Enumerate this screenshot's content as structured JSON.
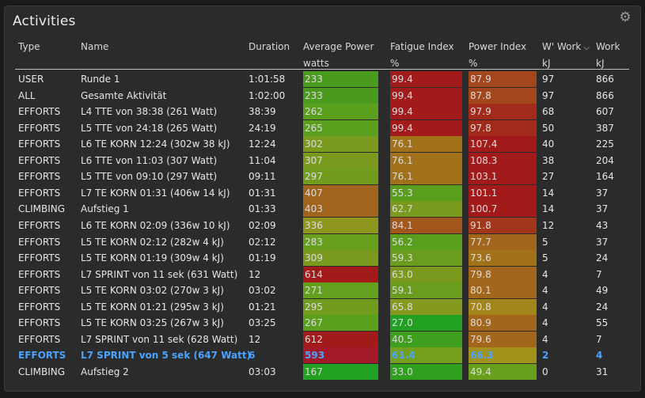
{
  "panel": {
    "title": "Activities",
    "settings_icon": "gear-icon"
  },
  "headers": {
    "type": "Type",
    "name": "Name",
    "duration": "Duration",
    "avg_power": "Average Power",
    "avg_power_unit": "watts",
    "fatigue": "Fatigue Index",
    "fatigue_unit": "%",
    "power_index": "Power Index",
    "power_index_unit": "%",
    "wprime": "W' Work",
    "wprime_unit": "kJ",
    "work": "Work",
    "work_unit": "kJ"
  },
  "rows": [
    {
      "type": "USER",
      "name": "Runde 1",
      "duration": "1:01:58",
      "avg_power": "233",
      "fatigue": "99.4",
      "power_index": "87.9",
      "wprime": "97",
      "work": "866",
      "ap_color": "#4a9a1e",
      "fi_color": "#a21a1a",
      "pi_color": "#a3461c"
    },
    {
      "type": "ALL",
      "name": "Gesamte Aktivität",
      "duration": "1:02:00",
      "avg_power": "233",
      "fatigue": "99.4",
      "power_index": "87.8",
      "wprime": "97",
      "work": "866",
      "ap_color": "#4a9a1e",
      "fi_color": "#a21a1a",
      "pi_color": "#a3461c"
    },
    {
      "type": "EFFORTS",
      "name": "L4 TTE von 38:38  (261 Watt)",
      "duration": "38:39",
      "avg_power": "262",
      "fatigue": "99.4",
      "power_index": "97.9",
      "wprime": "68",
      "work": "607",
      "ap_color": "#5aa01e",
      "fi_color": "#a21a1a",
      "pi_color": "#a22a1a"
    },
    {
      "type": "EFFORTS",
      "name": "L5 TTE von 24:18  (265 Watt)",
      "duration": "24:19",
      "avg_power": "265",
      "fatigue": "99.4",
      "power_index": "97.8",
      "wprime": "50",
      "work": "387",
      "ap_color": "#5aa01e",
      "fi_color": "#a21a1a",
      "pi_color": "#a22a1a"
    },
    {
      "type": "EFFORTS",
      "name": "L6 TE KORN 12:24 (302w 38 kJ)",
      "duration": "12:24",
      "avg_power": "302",
      "fatigue": "76.1",
      "power_index": "107.4",
      "wprime": "40",
      "work": "225",
      "ap_color": "#7a9a1e",
      "fi_color": "#a2721a",
      "pi_color": "#a21a1a"
    },
    {
      "type": "EFFORTS",
      "name": "L6 TTE von 11:03  (307 Watt)",
      "duration": "11:04",
      "avg_power": "307",
      "fatigue": "76.1",
      "power_index": "108.3",
      "wprime": "38",
      "work": "204",
      "ap_color": "#7a9a1e",
      "fi_color": "#a2721a",
      "pi_color": "#a21a1a"
    },
    {
      "type": "EFFORTS",
      "name": "L5 TTE von 09:10  (297 Watt)",
      "duration": "09:11",
      "avg_power": "297",
      "fatigue": "76.1",
      "power_index": "103.1",
      "wprime": "27",
      "work": "164",
      "ap_color": "#729c1e",
      "fi_color": "#a2721a",
      "pi_color": "#a21a1a"
    },
    {
      "type": "EFFORTS",
      "name": "L7 TE KORN 01:31 (406w 14 kJ)",
      "duration": "01:31",
      "avg_power": "407",
      "fatigue": "55.3",
      "power_index": "101.1",
      "wprime": "14",
      "work": "37",
      "ap_color": "#a2641c",
      "fi_color": "#5a9e1e",
      "pi_color": "#a21a1a"
    },
    {
      "type": "CLIMBING",
      "name": "Aufstieg 1",
      "duration": "01:33",
      "avg_power": "403",
      "fatigue": "62.7",
      "power_index": "100.7",
      "wprime": "14",
      "work": "37",
      "ap_color": "#a2641c",
      "fi_color": "#7a9a1e",
      "pi_color": "#a21a1a"
    },
    {
      "type": "EFFORTS",
      "name": "L6 TE KORN 02:09 (336w 10 kJ)",
      "duration": "02:09",
      "avg_power": "336",
      "fatigue": "84.1",
      "power_index": "91.8",
      "wprime": "12",
      "work": "43",
      "ap_color": "#8e961e",
      "fi_color": "#a2561c",
      "pi_color": "#a2361a"
    },
    {
      "type": "EFFORTS",
      "name": "L5 TE KORN 02:12 (282w 4 kJ)",
      "duration": "02:12",
      "avg_power": "283",
      "fatigue": "56.2",
      "power_index": "77.7",
      "wprime": "5",
      "work": "37",
      "ap_color": "#68a01e",
      "fi_color": "#5a9e1e",
      "pi_color": "#a2661c"
    },
    {
      "type": "EFFORTS",
      "name": "L5 TE KORN 01:19 (309w 4 kJ)",
      "duration": "01:19",
      "avg_power": "309",
      "fatigue": "59.3",
      "power_index": "73.6",
      "wprime": "5",
      "work": "24",
      "ap_color": "#7a9a1e",
      "fi_color": "#6a9c1e",
      "pi_color": "#a2721a"
    },
    {
      "type": "EFFORTS",
      "name": "L7 SPRINT von 11 sek (631 Watt)",
      "duration": "12",
      "avg_power": "614",
      "fatigue": "63.0",
      "power_index": "79.8",
      "wprime": "4",
      "work": "7",
      "ap_color": "#a21a1a",
      "fi_color": "#7a9a1e",
      "pi_color": "#a2661c"
    },
    {
      "type": "EFFORTS",
      "name": "L5 TE KORN 03:02 (270w 3 kJ)",
      "duration": "03:02",
      "avg_power": "271",
      "fatigue": "59.1",
      "power_index": "80.1",
      "wprime": "4",
      "work": "49",
      "ap_color": "#62a01e",
      "fi_color": "#6a9c1e",
      "pi_color": "#a2661c"
    },
    {
      "type": "EFFORTS",
      "name": "L5 TE KORN 01:21 (295w 3 kJ)",
      "duration": "01:21",
      "avg_power": "295",
      "fatigue": "65.8",
      "power_index": "70.8",
      "wprime": "4",
      "work": "24",
      "ap_color": "#729c1e",
      "fi_color": "#849a1e",
      "pi_color": "#a2861c"
    },
    {
      "type": "EFFORTS",
      "name": "L5 TE KORN 03:25 (267w 3 kJ)",
      "duration": "03:25",
      "avg_power": "267",
      "fatigue": "27.0",
      "power_index": "80.9",
      "wprime": "4",
      "work": "55",
      "ap_color": "#5aa01e",
      "fi_color": "#22a022",
      "pi_color": "#a2661c"
    },
    {
      "type": "EFFORTS",
      "name": "L7 SPRINT von 11 sek (628 Watt)",
      "duration": "12",
      "avg_power": "612",
      "fatigue": "40.5",
      "power_index": "79.6",
      "wprime": "4",
      "work": "7",
      "ap_color": "#a21a1a",
      "fi_color": "#3ea01e",
      "pi_color": "#a2661c"
    },
    {
      "type": "EFFORTS",
      "name": "L7 SPRINT von 5 sek (647 Watt)",
      "duration": "6",
      "avg_power": "593",
      "fatigue": "61.4",
      "power_index": "66.3",
      "wprime": "2",
      "work": "4",
      "ap_color": "#a21a2a",
      "fi_color": "#74a01e",
      "pi_color": "#a2921c",
      "highlight": true
    },
    {
      "type": "CLIMBING",
      "name": "Aufstieg 2",
      "duration": "03:03",
      "avg_power": "167",
      "fatigue": "33.0",
      "power_index": "49.4",
      "wprime": "0",
      "work": "31",
      "ap_color": "#22a022",
      "fi_color": "#2ea01e",
      "pi_color": "#68a01e"
    }
  ]
}
